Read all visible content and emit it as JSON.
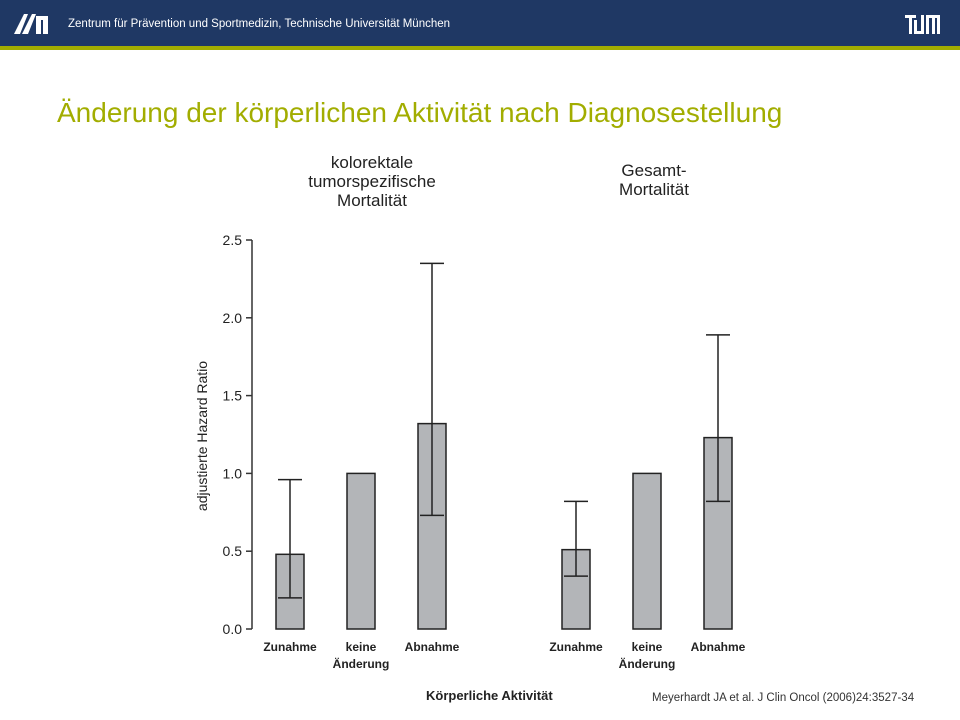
{
  "header": {
    "institute": "Zentrum für Prävention und Sportmedizin, Technische Universität München",
    "bar_color": "#1f3864",
    "accent_color": "#a2ad00"
  },
  "slide": {
    "title": "Änderung der körperlichen Aktivität nach Diagnosestellung",
    "citation": "Meyerhardt JA et al. J Clin Oncol (2006)24:3527-34"
  },
  "chart_data": {
    "type": "bar",
    "ylabel": "adjustierte Hazard Ratio",
    "xlabel": "Körperliche Aktivität",
    "ylim": [
      0,
      2.5
    ],
    "yticks": [
      "0.0",
      "0.5",
      "1.0",
      "1.5",
      "2.0",
      "2.5"
    ],
    "bar_color": "#b3b5b8",
    "groups": [
      {
        "title": "kolorektale\ntumorspezifische\nMortalität",
        "categories": [
          "Zunahme",
          "keine\nÄnderung",
          "Abnahme"
        ],
        "values": [
          0.48,
          1.0,
          1.32
        ],
        "ci_lower": [
          0.2,
          null,
          0.73
        ],
        "ci_upper": [
          0.96,
          null,
          2.35
        ]
      },
      {
        "title": "Gesamt-\nMortalität",
        "categories": [
          "Zunahme",
          "keine\nÄnderung",
          "Abnahme"
        ],
        "values": [
          0.51,
          1.0,
          1.23
        ],
        "ci_lower": [
          0.34,
          null,
          0.82
        ],
        "ci_upper": [
          0.82,
          null,
          1.89
        ]
      }
    ]
  }
}
